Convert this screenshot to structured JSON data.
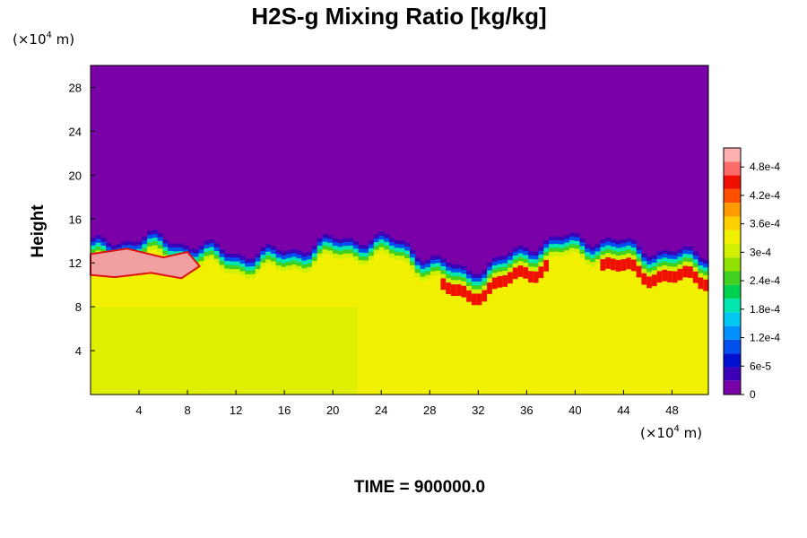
{
  "chart_data": {
    "type": "heatmap",
    "title": "H2S-g Mixing Ratio [kg/kg]",
    "ylabel": "Height",
    "x_unit_label": "(×10",
    "x_unit_exp": "4",
    "x_unit_tail": " m)",
    "y_unit_label": "(×10",
    "y_unit_exp": "4",
    "y_unit_tail": " m)",
    "time_label": "TIME = 900000.0",
    "xlim": [
      0,
      51
    ],
    "ylim": [
      0,
      30
    ],
    "x_ticks": [
      4,
      8,
      12,
      16,
      20,
      24,
      28,
      32,
      36,
      40,
      44,
      48
    ],
    "y_ticks": [
      4,
      8,
      12,
      16,
      20,
      24,
      28
    ],
    "x_tick_labels": [
      "4",
      "8",
      "12",
      "16",
      "20",
      "24",
      "28",
      "32",
      "36",
      "40",
      "44",
      "48"
    ],
    "y_tick_labels": [
      "4",
      "8",
      "12",
      "16",
      "20",
      "24",
      "28"
    ],
    "colorbar": {
      "range": [
        0,
        0.00052
      ],
      "tick_values": [
        0,
        6e-05,
        0.00012,
        0.00018,
        0.00024,
        0.0003,
        0.00036,
        0.00042,
        0.00048
      ],
      "tick_labels": [
        "0",
        "6e-5",
        "1.2e-4",
        "1.8e-4",
        "2.4e-4",
        "3e-4",
        "3.6e-4",
        "4.2e-4",
        "4.8e-4"
      ],
      "colors": [
        "#7a00a8",
        "#3c00b8",
        "#0010d0",
        "#0050f0",
        "#0090ff",
        "#00c8f0",
        "#00e8b0",
        "#00d050",
        "#40d020",
        "#90e000",
        "#d0f000",
        "#f0f000",
        "#ffd000",
        "#ff9a00",
        "#ff5000",
        "#f01000",
        "#ff6a6a",
        "#ffb0b0"
      ]
    },
    "field_description": {
      "background_value": 0.0,
      "lower_layer_value": 0.00033,
      "interface_height_range": [
        11,
        15
      ],
      "high_region": {
        "x": [
          0,
          9
        ],
        "y": [
          10.5,
          13
        ],
        "value": 0.00052
      }
    }
  }
}
